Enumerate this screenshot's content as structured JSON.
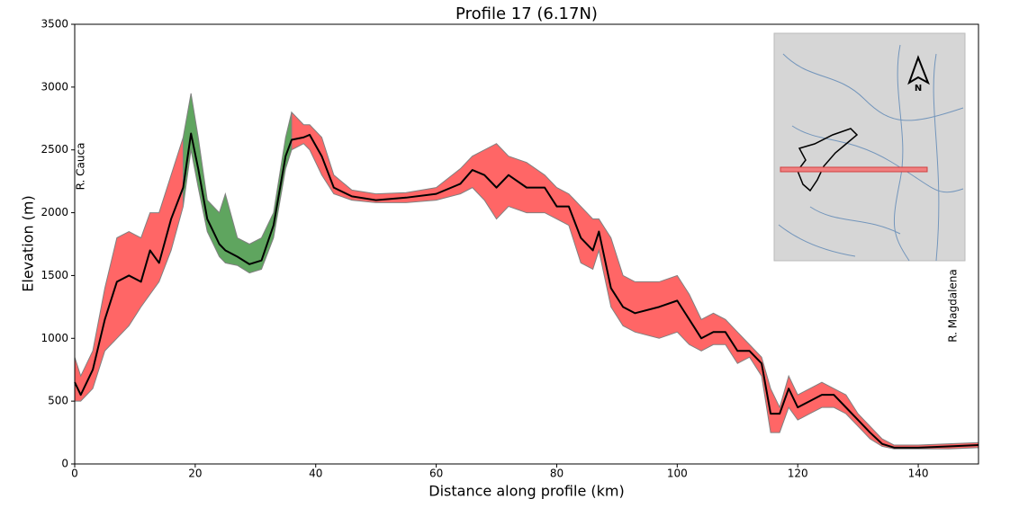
{
  "chart_data": {
    "type": "profile",
    "title": "Profile 17 (6.17N)",
    "xlabel": "Distance along profile (km)",
    "ylabel": "Elevation (m)",
    "annotations": [
      "R. Cauca",
      "R. Magdalena"
    ],
    "inset_label": "N",
    "xlim": [
      0,
      150
    ],
    "ylim": [
      0,
      3500
    ],
    "xticks": [
      0,
      20,
      40,
      60,
      80,
      100,
      120,
      140
    ],
    "yticks": [
      0,
      500,
      1000,
      1500,
      2000,
      2500,
      3000,
      3500
    ],
    "grid": false,
    "x": [
      0,
      1,
      3,
      5,
      7,
      9,
      11,
      12.5,
      14,
      16,
      18,
      19.3,
      20.5,
      22,
      24,
      25,
      27,
      29,
      31,
      33,
      35,
      36,
      38,
      39,
      41,
      43,
      46,
      50,
      55,
      60,
      64,
      66,
      68,
      70,
      72,
      75,
      78,
      80,
      82,
      84,
      86,
      87,
      89,
      91,
      93,
      97,
      100,
      102,
      104,
      106,
      108,
      110,
      112,
      114,
      115.5,
      117,
      118.5,
      120,
      122,
      124,
      126,
      128,
      130,
      132,
      134,
      136,
      140,
      145,
      150
    ],
    "series": [
      {
        "color": "#000000",
        "values": [
          650,
          550,
          750,
          1150,
          1450,
          1500,
          1450,
          1700,
          1600,
          1950,
          2200,
          2630,
          2350,
          1950,
          1750,
          1700,
          1650,
          1590,
          1620,
          1900,
          2450,
          2580,
          2600,
          2620,
          2450,
          2200,
          2130,
          2100,
          2120,
          2150,
          2230,
          2340,
          2300,
          2200,
          2300,
          2200,
          2200,
          2050,
          2050,
          1800,
          1700,
          1850,
          1400,
          1250,
          1200,
          1250,
          1300,
          1150,
          1000,
          1050,
          1050,
          900,
          900,
          800,
          400,
          400,
          600,
          450,
          500,
          550,
          550,
          450,
          350,
          250,
          160,
          130,
          130,
          140,
          150
        ]
      }
    ],
    "band": {
      "edge_color": "#808080",
      "lower": [
        500,
        500,
        600,
        900,
        1000,
        1100,
        1250,
        1350,
        1450,
        1700,
        2050,
        2500,
        2200,
        1850,
        1650,
        1600,
        1580,
        1520,
        1550,
        1800,
        2350,
        2500,
        2550,
        2500,
        2300,
        2150,
        2100,
        2080,
        2080,
        2100,
        2150,
        2200,
        2100,
        1950,
        2050,
        2000,
        2000,
        1950,
        1900,
        1600,
        1550,
        1700,
        1250,
        1100,
        1050,
        1000,
        1050,
        950,
        900,
        950,
        950,
        800,
        850,
        700,
        250,
        250,
        450,
        350,
        400,
        450,
        450,
        400,
        300,
        200,
        140,
        120,
        120,
        120,
        130
      ],
      "upper": [
        850,
        700,
        900,
        1400,
        1800,
        1850,
        1800,
        2000,
        2000,
        2300,
        2600,
        2950,
        2600,
        2100,
        2000,
        2150,
        1800,
        1750,
        1800,
        2000,
        2600,
        2800,
        2700,
        2700,
        2600,
        2300,
        2180,
        2150,
        2160,
        2200,
        2350,
        2450,
        2500,
        2550,
        2450,
        2400,
        2300,
        2200,
        2150,
        2050,
        1950,
        1950,
        1800,
        1500,
        1450,
        1450,
        1500,
        1350,
        1150,
        1200,
        1150,
        1050,
        950,
        850,
        600,
        450,
        700,
        550,
        600,
        650,
        600,
        550,
        400,
        300,
        200,
        150,
        150,
        160,
        170
      ],
      "colors": [
        "#ff6666",
        "#ff6666",
        "#ff6666",
        "#ff6666",
        "#ff6666",
        "#ff6666",
        "#ff6666",
        "#ff6666",
        "#ff6666",
        "#ff6666",
        "#5fa55f",
        "#5fa55f",
        "#5fa55f",
        "#5fa55f",
        "#5fa55f",
        "#5fa55f",
        "#5fa55f",
        "#5fa55f",
        "#5fa55f",
        "#5fa55f",
        "#5fa55f",
        "#ff6666",
        "#ff6666",
        "#ff6666",
        "#ff6666",
        "#ff6666",
        "#ff6666",
        "#ff6666",
        "#ff6666",
        "#ff6666",
        "#ff6666",
        "#ff6666",
        "#ff6666",
        "#ff6666",
        "#ff6666",
        "#ff6666",
        "#ff6666",
        "#ff6666",
        "#ff6666",
        "#ff6666",
        "#ff6666",
        "#ff6666",
        "#ff6666",
        "#ff6666",
        "#ff6666",
        "#ff6666",
        "#ff6666",
        "#ff6666",
        "#ff6666",
        "#ff6666",
        "#ff6666",
        "#ff6666",
        "#ff6666",
        "#ff6666",
        "#ff6666",
        "#ff6666",
        "#ff6666",
        "#ff6666",
        "#ff6666",
        "#ff6666",
        "#ff6666",
        "#ff6666",
        "#ff6666",
        "#ff6666",
        "#ff6666",
        "#ff6666",
        "#ff6666",
        "#ff6666",
        "#ff6666"
      ]
    }
  }
}
